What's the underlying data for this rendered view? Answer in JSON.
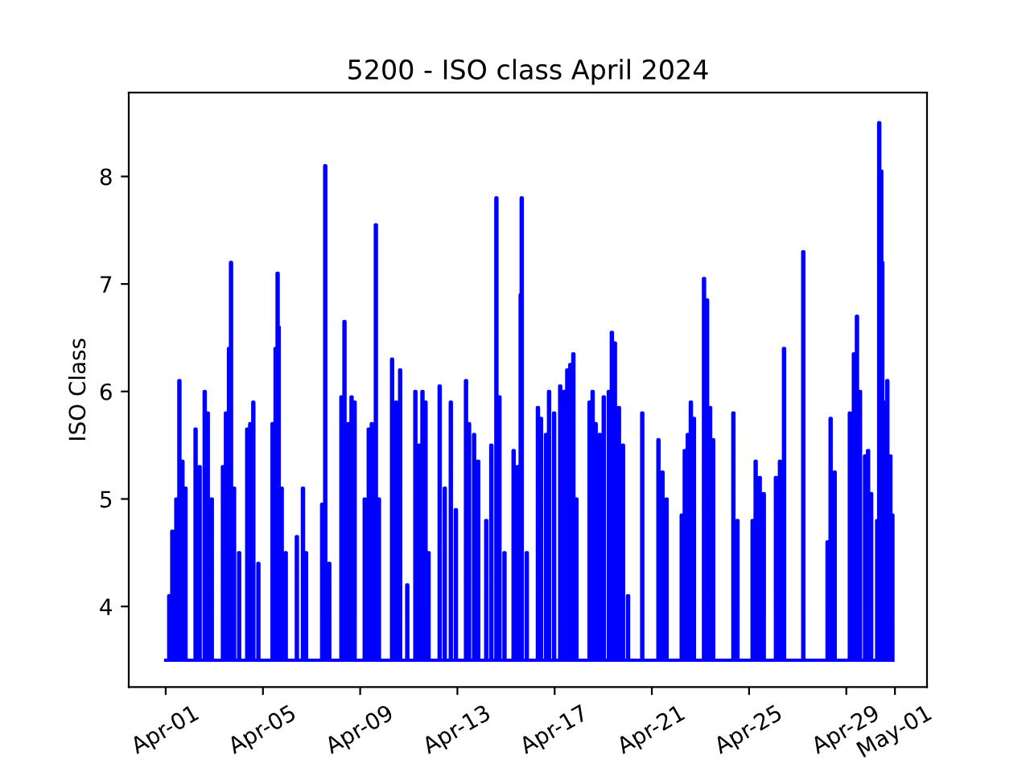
{
  "chart_data": {
    "type": "step",
    "title": "5200 - ISO class April 2024",
    "ylabel": "ISO Class",
    "x": [
      "2024-04-01T00:00",
      "2024-04-01T03:00",
      "2024-04-01T04:00",
      "2024-04-01T06:00",
      "2024-04-01T07:00",
      "2024-04-01T10:00",
      "2024-04-01T11:00",
      "2024-04-01T13:00",
      "2024-04-01T14:00",
      "2024-04-01T16:00",
      "2024-04-01T17:00",
      "2024-04-01T19:00",
      "2024-04-01T20:00",
      "2024-04-02T05:00",
      "2024-04-02T06:00",
      "2024-04-02T09:00",
      "2024-04-02T10:00",
      "2024-04-02T14:00",
      "2024-04-02T15:00",
      "2024-04-02T17:00",
      "2024-04-02T18:00",
      "2024-04-02T21:00",
      "2024-04-02T22:00",
      "2024-04-03T08:00",
      "2024-04-03T09:00",
      "2024-04-03T11:00",
      "2024-04-03T12:00",
      "2024-04-03T14:00",
      "2024-04-03T15:00",
      "2024-04-03T16:00",
      "2024-04-03T17:00",
      "2024-04-03T19:00",
      "2024-04-03T20:00",
      "2024-04-04T00:00",
      "2024-04-04T01:00",
      "2024-04-04T08:00",
      "2024-04-04T09:00",
      "2024-04-04T11:00",
      "2024-04-04T12:00",
      "2024-04-04T14:00",
      "2024-04-04T15:00",
      "2024-04-04T19:00",
      "2024-04-04T20:00",
      "2024-04-05T09:00",
      "2024-04-05T10:00",
      "2024-04-05T12:00",
      "2024-04-05T13:00",
      "2024-04-05T14:00",
      "2024-04-05T15:00",
      "2024-04-05T16:00",
      "2024-04-05T18:00",
      "2024-04-05T19:00",
      "2024-04-05T22:00",
      "2024-04-05T23:00",
      "2024-04-06T09:00",
      "2024-04-06T10:00",
      "2024-04-06T15:00",
      "2024-04-06T16:00",
      "2024-04-06T18:00",
      "2024-04-06T19:00",
      "2024-04-07T10:00",
      "2024-04-07T11:00",
      "2024-04-07T13:00",
      "2024-04-07T14:00",
      "2024-04-07T17:00",
      "2024-04-07T18:00",
      "2024-04-08T05:00",
      "2024-04-08T06:00",
      "2024-04-08T08:00",
      "2024-04-08T09:00",
      "2024-04-08T12:00",
      "2024-04-08T13:00",
      "2024-04-08T15:00",
      "2024-04-08T16:00",
      "2024-04-08T18:00",
      "2024-04-08T19:00",
      "2024-04-09T04:00",
      "2024-04-09T05:00",
      "2024-04-09T08:00",
      "2024-04-09T09:00",
      "2024-04-09T11:00",
      "2024-04-09T12:00",
      "2024-04-09T15:00",
      "2024-04-09T16:00",
      "2024-04-09T18:00",
      "2024-04-09T19:00",
      "2024-04-10T07:00",
      "2024-04-10T08:00",
      "2024-04-10T11:00",
      "2024-04-10T12:00",
      "2024-04-10T15:00",
      "2024-04-10T16:00",
      "2024-04-10T22:00",
      "2024-04-10T23:00",
      "2024-04-11T06:00",
      "2024-04-11T07:00",
      "2024-04-11T10:00",
      "2024-04-11T11:00",
      "2024-04-11T13:00",
      "2024-04-11T14:00",
      "2024-04-11T16:00",
      "2024-04-11T17:00",
      "2024-04-11T19:00",
      "2024-04-11T20:00",
      "2024-04-12T06:00",
      "2024-04-12T07:00",
      "2024-04-12T11:00",
      "2024-04-12T12:00",
      "2024-04-12T17:00",
      "2024-04-12T18:00",
      "2024-04-12T22:00",
      "2024-04-12T23:00",
      "2024-04-13T08:00",
      "2024-04-13T09:00",
      "2024-04-13T11:00",
      "2024-04-13T12:00",
      "2024-04-13T16:00",
      "2024-04-13T17:00",
      "2024-04-13T20:00",
      "2024-04-13T21:00",
      "2024-04-14T04:00",
      "2024-04-14T05:00",
      "2024-04-14T09:00",
      "2024-04-14T10:00",
      "2024-04-14T14:00",
      "2024-04-14T15:00",
      "2024-04-14T17:00",
      "2024-04-14T18:00",
      "2024-04-14T22:00",
      "2024-04-14T23:00",
      "2024-04-15T07:00",
      "2024-04-15T08:00",
      "2024-04-15T11:00",
      "2024-04-15T12:00",
      "2024-04-15T14:00",
      "2024-04-15T15:00",
      "2024-04-15T16:00",
      "2024-04-15T20:00",
      "2024-04-15T21:00",
      "2024-04-16T07:00",
      "2024-04-16T08:00",
      "2024-04-16T10:00",
      "2024-04-16T11:00",
      "2024-04-16T15:00",
      "2024-04-16T16:00",
      "2024-04-16T18:00",
      "2024-04-16T19:00",
      "2024-04-16T23:00",
      "2024-04-17T00:00",
      "2024-04-17T05:00",
      "2024-04-17T06:00",
      "2024-04-17T09:00",
      "2024-04-17T10:00",
      "2024-04-17T12:00",
      "2024-04-17T13:00",
      "2024-04-17T15:00",
      "2024-04-17T16:00",
      "2024-04-17T18:00",
      "2024-04-17T19:00",
      "2024-04-17T21:00",
      "2024-04-17T22:00",
      "2024-04-18T10:00",
      "2024-04-18T11:00",
      "2024-04-18T13:00",
      "2024-04-18T14:00",
      "2024-04-18T16:00",
      "2024-04-18T17:00",
      "2024-04-18T20:00",
      "2024-04-18T21:00",
      "2024-04-19T00:00",
      "2024-04-19T01:00",
      "2024-04-19T05:00",
      "2024-04-19T06:00",
      "2024-04-19T08:00",
      "2024-04-19T09:00",
      "2024-04-19T11:00",
      "2024-04-19T12:00",
      "2024-04-19T15:00",
      "2024-04-19T16:00",
      "2024-04-19T19:00",
      "2024-04-19T20:00",
      "2024-04-20T00:00",
      "2024-04-20T01:00",
      "2024-04-20T14:00",
      "2024-04-20T15:00",
      "2024-04-21T06:00",
      "2024-04-21T07:00",
      "2024-04-21T10:00",
      "2024-04-21T11:00",
      "2024-04-21T14:00",
      "2024-04-21T15:00",
      "2024-04-22T05:00",
      "2024-04-22T06:00",
      "2024-04-22T08:00",
      "2024-04-22T09:00",
      "2024-04-22T11:00",
      "2024-04-22T12:00",
      "2024-04-22T14:00",
      "2024-04-22T15:00",
      "2024-04-22T17:00",
      "2024-04-22T18:00",
      "2024-04-23T03:00",
      "2024-04-23T04:00",
      "2024-04-23T06:00",
      "2024-04-23T07:00",
      "2024-04-23T09:00",
      "2024-04-23T10:00",
      "2024-04-23T12:00",
      "2024-04-23T13:00",
      "2024-04-24T08:00",
      "2024-04-24T09:00",
      "2024-04-24T12:00",
      "2024-04-24T13:00",
      "2024-04-25T03:00",
      "2024-04-25T04:00",
      "2024-04-25T06:00",
      "2024-04-25T07:00",
      "2024-04-25T10:00",
      "2024-04-25T11:00",
      "2024-04-25T14:00",
      "2024-04-25T15:00",
      "2024-04-26T02:00",
      "2024-04-26T03:00",
      "2024-04-26T06:00",
      "2024-04-26T07:00",
      "2024-04-26T10:00",
      "2024-04-26T11:00",
      "2024-04-27T05:00",
      "2024-04-27T06:00",
      "2024-04-28T05:00",
      "2024-04-28T06:00",
      "2024-04-28T08:00",
      "2024-04-28T09:00",
      "2024-04-28T12:00",
      "2024-04-28T13:00",
      "2024-04-29T03:00",
      "2024-04-29T04:00",
      "2024-04-29T07:00",
      "2024-04-29T08:00",
      "2024-04-29T10:00",
      "2024-04-29T11:00",
      "2024-04-29T13:00",
      "2024-04-29T14:00",
      "2024-04-29T18:00",
      "2024-04-29T19:00",
      "2024-04-29T21:00",
      "2024-04-29T22:00",
      "2024-04-30T00:00",
      "2024-04-30T01:00",
      "2024-04-30T06:00",
      "2024-04-30T07:00",
      "2024-04-30T08:00",
      "2024-04-30T09:00",
      "2024-04-30T10:00",
      "2024-04-30T11:00",
      "2024-04-30T12:00",
      "2024-04-30T14:00",
      "2024-04-30T15:00",
      "2024-04-30T16:00",
      "2024-04-30T17:00",
      "2024-04-30T19:00",
      "2024-04-30T20:00",
      "2024-04-30T21:00",
      "2024-04-30T22:00"
    ],
    "series": [
      {
        "color": "#0000ff",
        "values": [
          3.5,
          4.1,
          3.5,
          4.7,
          3.5,
          5.0,
          3.5,
          6.1,
          3.5,
          5.35,
          3.5,
          5.1,
          3.5,
          5.65,
          3.5,
          5.3,
          3.5,
          6.0,
          3.5,
          5.8,
          3.5,
          5.0,
          3.5,
          5.3,
          3.5,
          5.8,
          3.5,
          6.4,
          3.5,
          7.2,
          3.5,
          5.1,
          3.5,
          4.5,
          3.5,
          5.65,
          3.5,
          5.7,
          3.5,
          5.9,
          3.5,
          4.4,
          3.5,
          5.7,
          3.5,
          6.4,
          3.5,
          7.1,
          6.6,
          3.5,
          5.1,
          3.5,
          4.5,
          3.5,
          4.65,
          3.5,
          5.1,
          3.5,
          4.5,
          3.5,
          4.95,
          3.5,
          8.1,
          3.5,
          4.4,
          3.5,
          5.95,
          3.5,
          6.65,
          3.5,
          5.7,
          3.5,
          5.95,
          3.5,
          5.9,
          3.5,
          5.0,
          3.5,
          5.65,
          3.5,
          5.7,
          3.5,
          7.55,
          3.5,
          5.0,
          3.5,
          6.3,
          3.5,
          5.9,
          3.5,
          6.2,
          3.5,
          4.2,
          3.5,
          6.0,
          3.5,
          5.5,
          3.5,
          6.0,
          3.5,
          5.9,
          3.5,
          4.5,
          3.5,
          6.05,
          3.5,
          5.1,
          3.5,
          5.9,
          3.5,
          4.9,
          3.5,
          6.1,
          3.5,
          5.7,
          3.5,
          5.6,
          3.5,
          5.35,
          3.5,
          4.8,
          3.5,
          5.5,
          3.5,
          7.8,
          3.5,
          5.95,
          3.5,
          4.5,
          3.5,
          5.45,
          3.5,
          5.3,
          3.5,
          6.9,
          7.8,
          3.5,
          4.5,
          3.5,
          5.85,
          3.5,
          5.75,
          3.5,
          5.6,
          3.5,
          6.0,
          3.5,
          5.8,
          3.5,
          6.05,
          3.5,
          6.0,
          3.5,
          6.2,
          3.5,
          6.25,
          3.5,
          6.35,
          3.5,
          5.0,
          3.5,
          5.9,
          3.5,
          6.0,
          3.5,
          5.7,
          3.5,
          5.6,
          3.5,
          5.95,
          3.5,
          6.0,
          3.5,
          6.55,
          3.5,
          6.45,
          3.5,
          5.85,
          3.5,
          5.5,
          3.5,
          4.1,
          3.5,
          5.8,
          3.5,
          5.55,
          3.5,
          5.25,
          3.5,
          5.0,
          3.5,
          4.85,
          3.5,
          5.45,
          3.5,
          5.6,
          3.5,
          5.9,
          3.5,
          5.75,
          3.5,
          7.05,
          3.5,
          6.85,
          3.5,
          5.85,
          3.5,
          5.55,
          3.5,
          5.8,
          3.5,
          4.8,
          3.5,
          4.8,
          3.5,
          5.35,
          3.5,
          5.2,
          3.5,
          5.05,
          3.5,
          5.2,
          3.5,
          5.35,
          3.5,
          6.4,
          3.5,
          7.3,
          3.5,
          4.6,
          3.5,
          5.75,
          3.5,
          5.25,
          3.5,
          5.8,
          3.5,
          6.35,
          3.5,
          6.7,
          3.5,
          6.0,
          3.5,
          5.4,
          3.5,
          5.45,
          3.5,
          5.05,
          3.5,
          4.8,
          3.5,
          8.5,
          3.5,
          8.05,
          7.2,
          3.5,
          5.9,
          3.5,
          6.1,
          3.5,
          5.4,
          3.5,
          4.85,
          3.5
        ]
      }
    ],
    "xlim": [
      "2024-03-30T11:30",
      "2024-05-02T07:40"
    ],
    "xticks": [
      {
        "value": "2024-04-01",
        "label": "Apr-01"
      },
      {
        "value": "2024-04-05",
        "label": "Apr-05"
      },
      {
        "value": "2024-04-09",
        "label": "Apr-09"
      },
      {
        "value": "2024-04-13",
        "label": "Apr-13"
      },
      {
        "value": "2024-04-17",
        "label": "Apr-17"
      },
      {
        "value": "2024-04-21",
        "label": "Apr-21"
      },
      {
        "value": "2024-04-25",
        "label": "Apr-25"
      },
      {
        "value": "2024-04-29",
        "label": "Apr-29"
      },
      {
        "value": "2024-05-01",
        "label": "May-01"
      }
    ],
    "ylim": [
      3.25,
      8.78
    ],
    "yticks": [
      4,
      5,
      6,
      7,
      8
    ],
    "grid": false,
    "legend": false,
    "marker": "none",
    "line_style": "solid"
  }
}
